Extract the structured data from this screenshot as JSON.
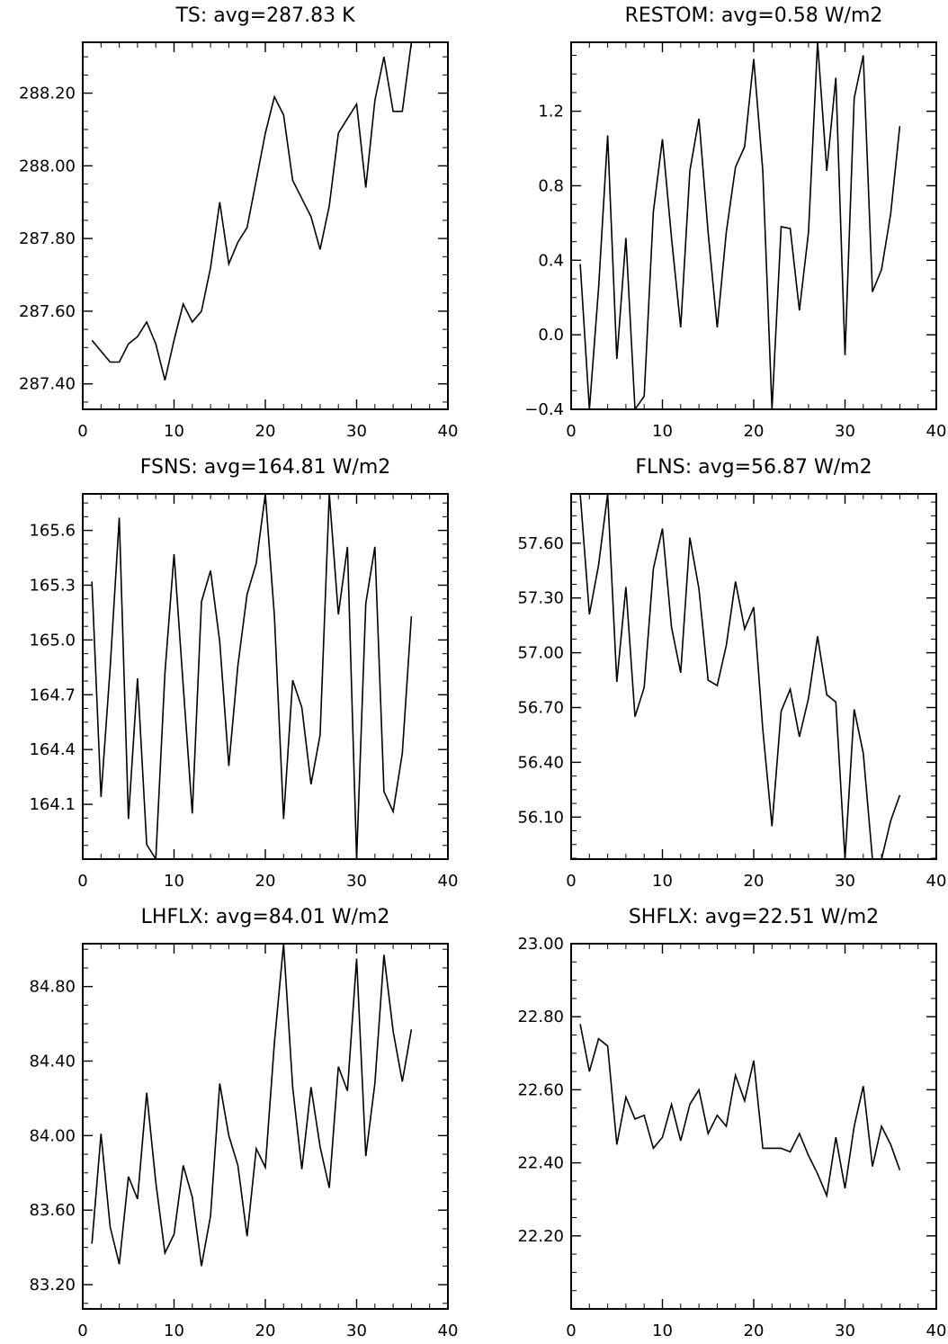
{
  "chart_data": [
    {
      "type": "line",
      "title": "TS: avg=287.83 K",
      "x": [
        1,
        2,
        3,
        4,
        5,
        6,
        7,
        8,
        9,
        10,
        11,
        12,
        13,
        14,
        15,
        16,
        17,
        18,
        19,
        20,
        21,
        22,
        23,
        24,
        25,
        26,
        27,
        28,
        29,
        30,
        31,
        32,
        33,
        34,
        35,
        36
      ],
      "values": [
        287.52,
        287.49,
        287.46,
        287.46,
        287.51,
        287.53,
        287.57,
        287.51,
        287.41,
        287.52,
        287.62,
        287.57,
        287.6,
        287.72,
        287.9,
        287.73,
        287.79,
        287.83,
        287.96,
        288.09,
        288.19,
        288.14,
        287.96,
        287.91,
        287.86,
        287.77,
        287.89,
        288.09,
        288.13,
        288.17,
        287.94,
        288.18,
        288.3,
        288.15,
        288.15,
        288.34
      ],
      "xlim": [
        0,
        40
      ],
      "ylim": [
        287.33,
        288.34
      ],
      "xticks": [
        "0",
        "10",
        "20",
        "30",
        "40"
      ],
      "xtick_values": [
        0,
        10,
        20,
        30,
        40
      ],
      "yticks": [
        "287.40",
        "287.60",
        "287.80",
        "288.00",
        "288.20"
      ],
      "ytick_values": [
        287.4,
        287.6,
        287.8,
        288.0,
        288.2
      ],
      "xlabel": "",
      "ylabel": ""
    },
    {
      "type": "line",
      "title": "RESTOM: avg=0.58 W/m2",
      "x": [
        1,
        2,
        3,
        4,
        5,
        6,
        7,
        8,
        9,
        10,
        11,
        12,
        13,
        14,
        15,
        16,
        17,
        18,
        19,
        20,
        21,
        22,
        23,
        24,
        25,
        26,
        27,
        28,
        29,
        30,
        31,
        32,
        33,
        34,
        35,
        36
      ],
      "values": [
        0.38,
        -0.4,
        0.25,
        1.07,
        -0.13,
        0.52,
        -0.4,
        -0.33,
        0.66,
        1.05,
        0.52,
        0.04,
        0.88,
        1.16,
        0.55,
        0.04,
        0.55,
        0.9,
        1.01,
        1.48,
        0.88,
        -0.4,
        0.58,
        0.57,
        0.13,
        0.55,
        1.57,
        0.88,
        1.38,
        -0.11,
        1.27,
        1.5,
        0.23,
        0.35,
        0.65,
        1.12
      ],
      "xlim": [
        0,
        40
      ],
      "ylim": [
        -0.4,
        1.57
      ],
      "xticks": [
        "0",
        "10",
        "20",
        "30",
        "40"
      ],
      "xtick_values": [
        0,
        10,
        20,
        30,
        40
      ],
      "yticks": [
        "−0.4",
        "0.0",
        "0.4",
        "0.8",
        "1.2"
      ],
      "ytick_values": [
        -0.4,
        0.0,
        0.4,
        0.8,
        1.2
      ],
      "xlabel": "",
      "ylabel": ""
    },
    {
      "type": "line",
      "title": "FSNS: avg=164.81 W/m2",
      "x": [
        1,
        2,
        3,
        4,
        5,
        6,
        7,
        8,
        9,
        10,
        11,
        12,
        13,
        14,
        15,
        16,
        17,
        18,
        19,
        20,
        21,
        22,
        23,
        24,
        25,
        26,
        27,
        28,
        29,
        30,
        31,
        32,
        33,
        34,
        35,
        36
      ],
      "values": [
        165.32,
        164.14,
        164.85,
        165.67,
        164.02,
        164.79,
        163.88,
        163.8,
        164.82,
        165.47,
        164.75,
        164.05,
        165.21,
        165.38,
        164.99,
        164.31,
        164.86,
        165.25,
        165.42,
        165.8,
        165.13,
        164.02,
        164.78,
        164.63,
        164.21,
        164.48,
        165.8,
        165.14,
        165.51,
        163.8,
        165.2,
        165.51,
        164.17,
        164.06,
        164.38,
        165.13
      ],
      "xlim": [
        0,
        40
      ],
      "ylim": [
        163.8,
        165.8
      ],
      "xticks": [
        "0",
        "10",
        "20",
        "30",
        "40"
      ],
      "xtick_values": [
        0,
        10,
        20,
        30,
        40
      ],
      "yticks": [
        "164.1",
        "164.4",
        "164.7",
        "165.0",
        "165.3",
        "165.6"
      ],
      "ytick_values": [
        164.1,
        164.4,
        164.7,
        165.0,
        165.3,
        165.6
      ],
      "xlabel": "",
      "ylabel": ""
    },
    {
      "type": "line",
      "title": "FLNS: avg=56.87 W/m2",
      "x": [
        1,
        2,
        3,
        4,
        5,
        6,
        7,
        8,
        9,
        10,
        11,
        12,
        13,
        14,
        15,
        16,
        17,
        18,
        19,
        20,
        21,
        22,
        23,
        24,
        25,
        26,
        27,
        28,
        29,
        30,
        31,
        32,
        33,
        34,
        35,
        36
      ],
      "values": [
        57.87,
        57.21,
        57.48,
        57.87,
        56.84,
        57.36,
        56.65,
        56.81,
        57.46,
        57.68,
        57.14,
        56.89,
        57.63,
        57.35,
        56.85,
        56.82,
        57.04,
        57.39,
        57.13,
        57.25,
        56.58,
        56.05,
        56.68,
        56.8,
        56.54,
        56.75,
        57.09,
        56.77,
        56.73,
        55.87,
        56.69,
        56.45,
        55.87,
        55.87,
        56.08,
        56.22
      ],
      "xlim": [
        0,
        40
      ],
      "ylim": [
        55.87,
        57.87
      ],
      "xticks": [
        "0",
        "10",
        "20",
        "30",
        "40"
      ],
      "xtick_values": [
        0,
        10,
        20,
        30,
        40
      ],
      "yticks": [
        "56.10",
        "56.40",
        "56.70",
        "57.00",
        "57.30",
        "57.60"
      ],
      "ytick_values": [
        56.1,
        56.4,
        56.7,
        57.0,
        57.3,
        57.6
      ],
      "xlabel": "",
      "ylabel": ""
    },
    {
      "type": "line",
      "title": "LHFLX: avg=84.01 W/m2",
      "x": [
        1,
        2,
        3,
        4,
        5,
        6,
        7,
        8,
        9,
        10,
        11,
        12,
        13,
        14,
        15,
        16,
        17,
        18,
        19,
        20,
        21,
        22,
        23,
        24,
        25,
        26,
        27,
        28,
        29,
        30,
        31,
        32,
        33,
        34,
        35,
        36
      ],
      "values": [
        83.42,
        84.01,
        83.51,
        83.31,
        83.78,
        83.66,
        84.23,
        83.75,
        83.37,
        83.47,
        83.84,
        83.67,
        83.3,
        83.57,
        84.28,
        84.0,
        83.84,
        83.46,
        83.93,
        83.83,
        84.5,
        85.03,
        84.26,
        83.82,
        84.26,
        83.94,
        83.72,
        84.37,
        84.24,
        84.95,
        83.89,
        84.28,
        84.97,
        84.56,
        84.29,
        84.57
      ],
      "xlim": [
        0,
        40
      ],
      "ylim": [
        83.07,
        85.03
      ],
      "xticks": [
        "0",
        "10",
        "20",
        "30",
        "40"
      ],
      "xtick_values": [
        0,
        10,
        20,
        30,
        40
      ],
      "yticks": [
        "83.20",
        "83.60",
        "84.00",
        "84.40",
        "84.80"
      ],
      "ytick_values": [
        83.2,
        83.6,
        84.0,
        84.4,
        84.8
      ],
      "xlabel": "",
      "ylabel": ""
    },
    {
      "type": "line",
      "title": "SHFLX: avg=22.51 W/m2",
      "x": [
        1,
        2,
        3,
        4,
        5,
        6,
        7,
        8,
        9,
        10,
        11,
        12,
        13,
        14,
        15,
        16,
        17,
        18,
        19,
        20,
        21,
        22,
        23,
        24,
        25,
        26,
        27,
        28,
        29,
        30,
        31,
        32,
        33,
        34,
        35,
        36
      ],
      "values": [
        22.78,
        22.65,
        22.74,
        22.72,
        22.45,
        22.58,
        22.52,
        22.53,
        22.44,
        22.47,
        22.56,
        22.46,
        22.56,
        22.6,
        22.48,
        22.53,
        22.5,
        22.64,
        22.57,
        22.68,
        22.44,
        22.44,
        22.44,
        22.43,
        22.48,
        22.42,
        22.37,
        22.31,
        22.47,
        22.33,
        22.5,
        22.61,
        22.39,
        22.5,
        22.45,
        22.38
      ],
      "xlim": [
        0,
        40
      ],
      "ylim": [
        22.0,
        23.0
      ],
      "xticks": [
        "0",
        "10",
        "20",
        "30",
        "40"
      ],
      "xtick_values": [
        0,
        10,
        20,
        30,
        40
      ],
      "yticks": [
        "22.20",
        "22.40",
        "22.60",
        "22.80",
        "23.00"
      ],
      "ytick_values": [
        22.2,
        22.4,
        22.6,
        22.8,
        23.0
      ],
      "xlabel": "",
      "ylabel": ""
    }
  ]
}
